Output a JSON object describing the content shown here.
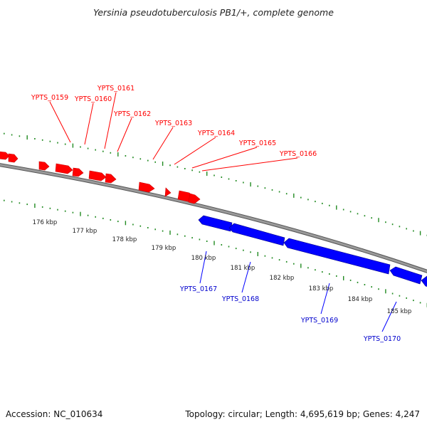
{
  "title": "Yersinia pseudotuberculosis PB1/+, complete genome",
  "footer": {
    "accession": "Accession: NC_010634",
    "summary": "Topology: circular; Length: 4,695,619 bp; Genes: 4,247"
  },
  "colors": {
    "forward": "#ff0000",
    "reverse": "#0000ff",
    "backbone": "#808080",
    "ticks": "#228b22"
  },
  "kbp_labels": [
    "176 kbp",
    "177 kbp",
    "178 kbp",
    "179 kbp",
    "180 kbp",
    "181 kbp",
    "182 kbp",
    "183 kbp",
    "184 kbp",
    "185 kbp"
  ],
  "forward_genes": [
    "YPTS_0159",
    "YPTS_0160",
    "YPTS_0161",
    "YPTS_0162",
    "YPTS_0163",
    "YPTS_0164",
    "YPTS_0165",
    "YPTS_0166"
  ],
  "reverse_genes": [
    "YPTS_0167",
    "YPTS_0168",
    "YPTS_0169",
    "YPTS_0170"
  ]
}
